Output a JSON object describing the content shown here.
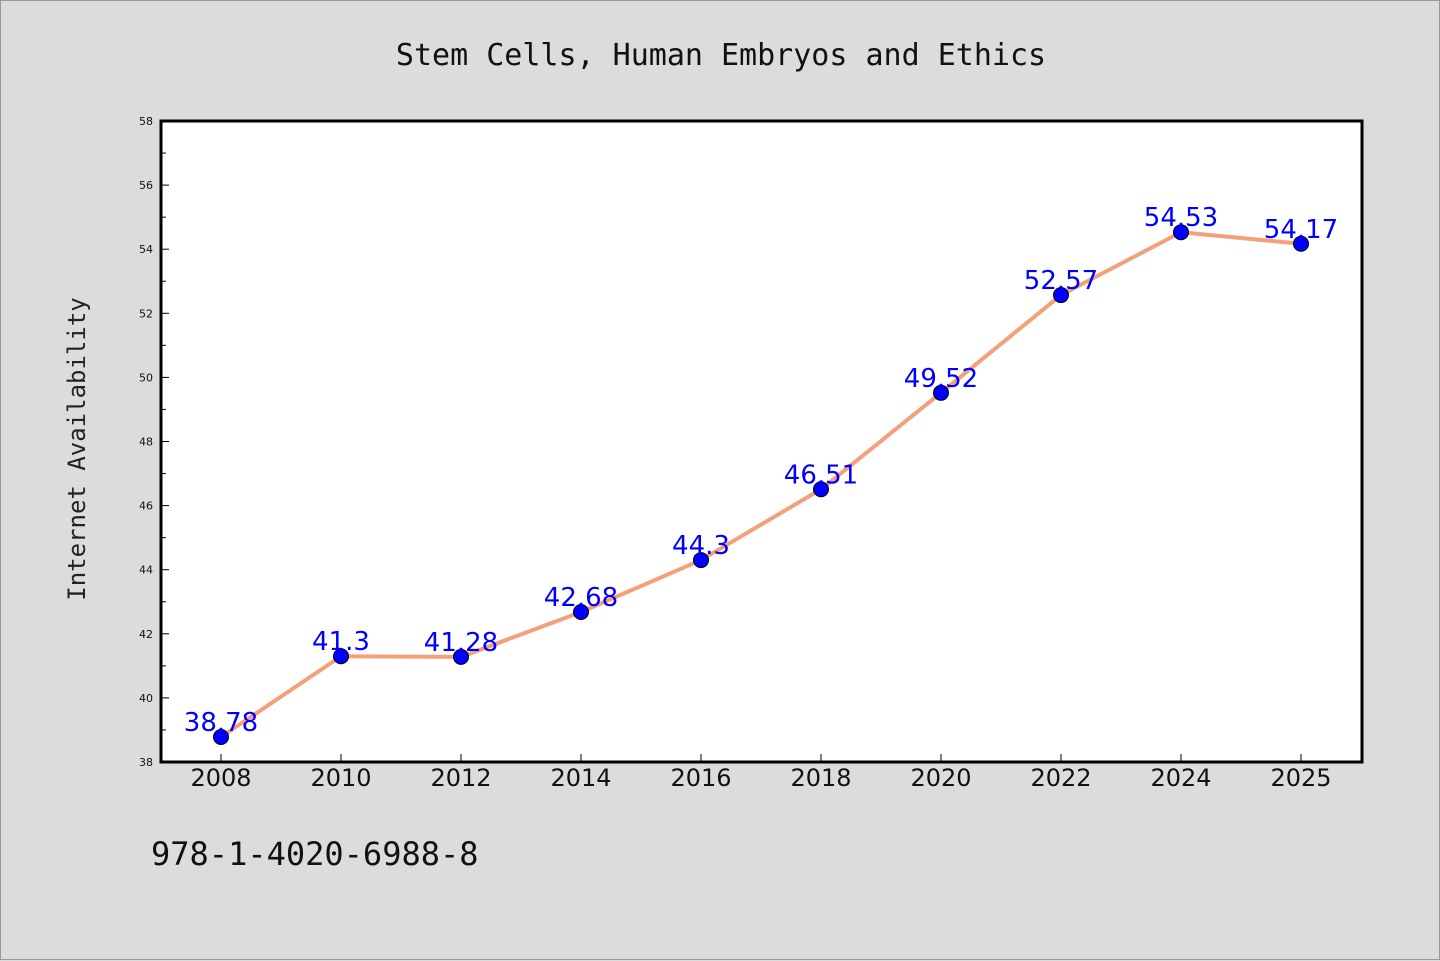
{
  "chart_data": {
    "type": "line",
    "title": "Stem Cells, Human Embryos and Ethics",
    "xlabel": "",
    "ylabel": "Internet Availability",
    "categories": [
      "2008",
      "2010",
      "2012",
      "2014",
      "2016",
      "2018",
      "2020",
      "2022",
      "2024",
      "2025"
    ],
    "series": [
      {
        "values": [
          38.78,
          41.3,
          41.28,
          42.68,
          44.3,
          46.51,
          49.52,
          52.57,
          54.53,
          54.17
        ],
        "data_labels": [
          "38.78",
          "41.3",
          "41.28",
          "42.68",
          "44.3",
          "46.51",
          "49.52",
          "52.57",
          "54.53",
          "54.17"
        ],
        "line_color": "#f4a07a",
        "marker_color": "#0000ff"
      }
    ],
    "ylim": [
      38,
      58
    ],
    "yticks": [
      "38",
      "40",
      "42",
      "44",
      "46",
      "48",
      "50",
      "52",
      "54",
      "56",
      "58"
    ],
    "grid": false,
    "legend": "none"
  },
  "footer": {
    "isbn": "978-1-4020-6988-8"
  },
  "colors": {
    "background": "#dcdcdc",
    "plot_background": "#ffffff",
    "line": "#f4a07a",
    "marker": "#0000ff",
    "data_label": "#0000ff"
  }
}
